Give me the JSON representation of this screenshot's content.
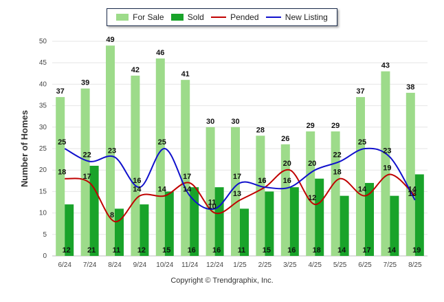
{
  "chart_data": {
    "type": "bar",
    "categories": [
      "6/24",
      "7/24",
      "8/24",
      "9/24",
      "10/24",
      "11/24",
      "12/24",
      "1/25",
      "2/25",
      "3/25",
      "4/25",
      "5/25",
      "6/25",
      "7/25",
      "8/25"
    ],
    "series": [
      {
        "name": "For Sale",
        "type": "bar",
        "color": "#9ddb8a",
        "values": [
          37,
          39,
          49,
          42,
          46,
          41,
          30,
          30,
          28,
          26,
          29,
          29,
          37,
          43,
          38
        ]
      },
      {
        "name": "Sold",
        "type": "bar",
        "color": "#19a32a",
        "values": [
          12,
          21,
          11,
          12,
          15,
          16,
          16,
          11,
          15,
          16,
          18,
          14,
          17,
          14,
          19
        ]
      },
      {
        "name": "Pended",
        "type": "line",
        "color": "#c00000",
        "values": [
          18,
          17,
          8,
          14,
          14,
          17,
          10,
          13,
          16,
          20,
          12,
          18,
          14,
          19,
          14
        ]
      },
      {
        "name": "New Listing",
        "type": "line",
        "color": "#1010cc",
        "values": [
          25,
          22,
          23,
          16,
          25,
          14,
          11,
          17,
          16,
          16,
          20,
          22,
          25,
          23,
          13
        ]
      }
    ],
    "ylabel": "Number of Homes",
    "xlabel": "",
    "ylim": [
      0,
      50
    ],
    "yticks": [
      0,
      5,
      10,
      15,
      20,
      25,
      30,
      35,
      40,
      45,
      50
    ],
    "grid": true,
    "legend_position": "top-center"
  },
  "credit": "Copyright © Trendgraphix, Inc."
}
